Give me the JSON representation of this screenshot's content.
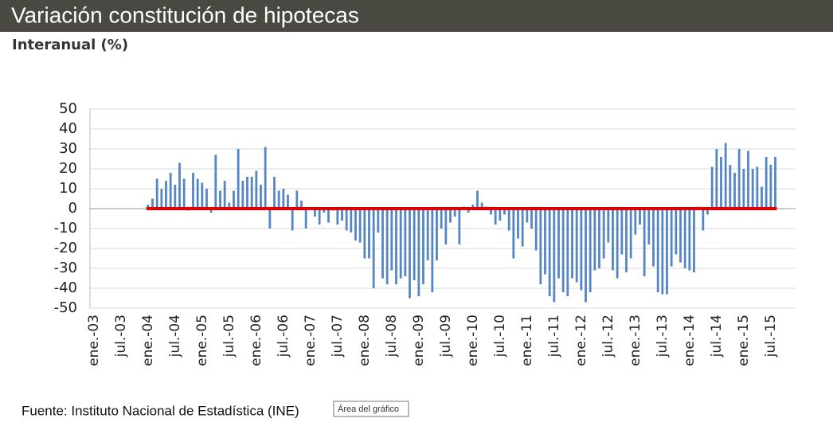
{
  "chart_data": {
    "type": "bar",
    "title": "Variación constitución de hipotecas",
    "subtitle": "Interanual (%)",
    "source": "Fuente: Instituto Nacional de Estadística (INE)",
    "tooltip": "Área del gráfico",
    "color": "#5585c2",
    "reference_line": {
      "value": 0,
      "color": "#e00000"
    },
    "grid": true,
    "ylim": [
      -50,
      50
    ],
    "yticks": [
      -50,
      -40,
      -30,
      -20,
      -10,
      0,
      10,
      20,
      30,
      40,
      50
    ],
    "categories": [
      "ene.-03",
      null,
      null,
      null,
      null,
      null,
      "jul.-03",
      null,
      null,
      null,
      null,
      null,
      "ene.-04",
      null,
      null,
      null,
      null,
      null,
      "jul.-04",
      null,
      null,
      null,
      null,
      null,
      "ene.-05",
      null,
      null,
      null,
      null,
      null,
      "jul.-05",
      null,
      null,
      null,
      null,
      null,
      "ene.-06",
      null,
      null,
      null,
      null,
      null,
      "jul.-06",
      null,
      null,
      null,
      null,
      null,
      "ene.-07",
      null,
      null,
      null,
      null,
      null,
      "jul.-07",
      null,
      null,
      null,
      null,
      null,
      "ene.-08",
      null,
      null,
      null,
      null,
      null,
      "jul.-08",
      null,
      null,
      null,
      null,
      null,
      "ene.-09",
      null,
      null,
      null,
      null,
      null,
      "jul.-09",
      null,
      null,
      null,
      null,
      null,
      "ene.-10",
      null,
      null,
      null,
      null,
      null,
      "jul.-10",
      null,
      null,
      null,
      null,
      null,
      "ene.-11",
      null,
      null,
      null,
      null,
      null,
      "jul.-11",
      null,
      null,
      null,
      null,
      null,
      "ene.-12",
      null,
      null,
      null,
      null,
      null,
      "jul.-12",
      null,
      null,
      null,
      null,
      null,
      "ene.-13",
      null,
      null,
      null,
      null,
      null,
      "jul.-13",
      null,
      null,
      null,
      null,
      null,
      "ene.-14",
      null,
      null,
      null,
      null,
      null,
      "jul.-14",
      null,
      null,
      null,
      null,
      null,
      "ene.-15",
      null,
      null,
      null,
      null,
      null,
      "jul.-15",
      null,
      null,
      null,
      null,
      null
    ],
    "values": [
      null,
      null,
      null,
      null,
      null,
      null,
      null,
      null,
      null,
      null,
      null,
      null,
      2,
      5,
      15,
      10,
      14,
      18,
      12,
      23,
      15,
      -1,
      18,
      15,
      13,
      10,
      -2,
      27,
      9,
      14,
      3,
      9,
      30,
      14,
      16,
      16,
      19,
      12,
      31,
      -10,
      16,
      9,
      10,
      7,
      -11,
      9,
      4,
      -10,
      0,
      -4,
      -8,
      -2,
      -7,
      -1,
      -8,
      -6,
      -11,
      -12,
      -16,
      -17,
      -25,
      -25,
      -40,
      -12,
      -35,
      -38,
      -31,
      -38,
      -35,
      -34,
      -45,
      -36,
      -44,
      -38,
      -26,
      -42,
      -26,
      -10,
      -18,
      -7,
      -4,
      -18,
      1,
      -2,
      2,
      9,
      3,
      1,
      -3,
      -8,
      -6,
      -3,
      -11,
      -25,
      -15,
      -19,
      -7,
      -10,
      -21,
      -38,
      -33,
      -44,
      -47,
      -35,
      -42,
      -44,
      -35,
      -37,
      -41,
      -47,
      -42,
      -31,
      -30,
      -25,
      -17,
      -31,
      -35,
      -23,
      -32,
      -25,
      -13,
      -8,
      -34,
      -18,
      -29,
      -42,
      -43,
      -43,
      -29,
      -23,
      -27,
      -30,
      -31,
      -32,
      1,
      -11,
      -3,
      21,
      30,
      26,
      33,
      22,
      18,
      30,
      20,
      29,
      20,
      21,
      11,
      26,
      22,
      26,
      null,
      null,
      null,
      null
    ]
  }
}
